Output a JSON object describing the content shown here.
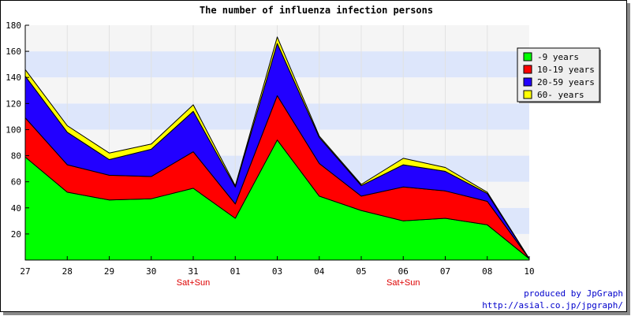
{
  "chart_data": {
    "type": "area",
    "stacked": true,
    "title": "The number of influenza infection persons",
    "categories": [
      "27",
      "28",
      "29",
      "30",
      "31",
      "01",
      "03",
      "04",
      "05",
      "06",
      "07",
      "08",
      "10"
    ],
    "category_sublabels": [
      "",
      "",
      "",
      "",
      "Sat+Sun",
      "",
      "",
      "",
      "",
      "Sat+Sun",
      "",
      "",
      ""
    ],
    "ylim": [
      0,
      180
    ],
    "yticks": [
      20,
      40,
      60,
      80,
      100,
      120,
      140,
      160,
      180
    ],
    "grid": true,
    "legend_position": "top-right",
    "series": [
      {
        "name": "-9 years",
        "color": "#00ff00",
        "values": [
          79,
          52,
          46,
          47,
          55,
          32,
          92,
          49,
          38,
          30,
          32,
          27,
          1
        ]
      },
      {
        "name": "10-19 years",
        "color": "#ff0000",
        "values": [
          30,
          21,
          19,
          17,
          28,
          11,
          34,
          25,
          11,
          26,
          21,
          18,
          0
        ]
      },
      {
        "name": "20-59 years",
        "color": "#2200ff",
        "values": [
          32,
          25,
          12,
          21,
          31,
          13,
          40,
          20,
          8,
          17,
          15,
          6,
          0
        ]
      },
      {
        "name": "60- years",
        "color": "#ffff00",
        "values": [
          5,
          5,
          5,
          4,
          5,
          1,
          5,
          1,
          1,
          5,
          3,
          1,
          0
        ]
      }
    ]
  },
  "credit": {
    "line1": "produced by JpGraph",
    "line2": "http://asial.co.jp/jpgraph/"
  }
}
